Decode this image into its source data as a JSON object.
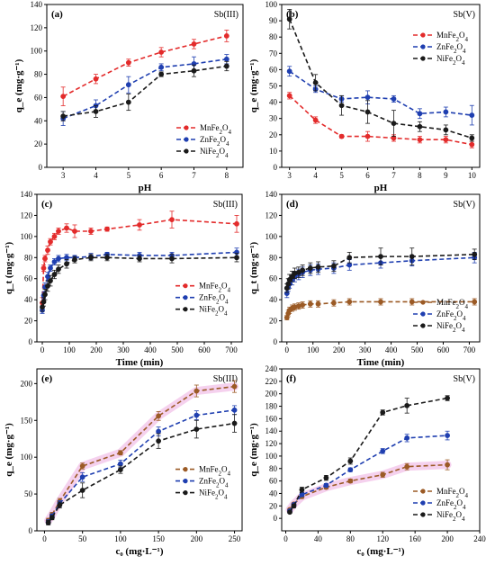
{
  "colors": {
    "MnFe2O4": "#e32b2b",
    "ZnFe2O4": "#1f3fb0",
    "NiFe2O4": "#1a1a1a",
    "brownMn": "#9b5a25",
    "highlight": "#f3c6ea"
  },
  "chart_data": [
    {
      "id": "a",
      "type": "line",
      "panel_label": "(a)",
      "tag": "Sb(III)",
      "xlabel": "pH",
      "ylabel": "q_e (mg·g⁻¹)",
      "xlim": [
        2.5,
        8.5
      ],
      "ylim": [
        0,
        140
      ],
      "xticks": [
        3,
        4,
        5,
        6,
        7,
        8
      ],
      "yticks": [
        0,
        20,
        40,
        60,
        80,
        100,
        120,
        140
      ],
      "legend_position": "bottom-right",
      "series": [
        {
          "name": "MnFe2O4",
          "x": [
            3,
            4,
            5,
            6,
            7,
            8
          ],
          "y": [
            61,
            76,
            90,
            99,
            106,
            113
          ],
          "err": [
            8,
            4,
            3,
            4,
            4,
            5
          ]
        },
        {
          "name": "ZnFe2O4",
          "x": [
            3,
            4,
            5,
            6,
            7,
            8
          ],
          "y": [
            42,
            53,
            71,
            86,
            89,
            93
          ],
          "err": [
            6,
            5,
            7,
            3,
            6,
            4
          ]
        },
        {
          "name": "NiFe2O4",
          "x": [
            3,
            4,
            5,
            6,
            7,
            8
          ],
          "y": [
            44,
            48,
            56,
            80,
            83,
            87
          ],
          "err": [
            4,
            5,
            7,
            2,
            5,
            4
          ]
        }
      ]
    },
    {
      "id": "b",
      "type": "line",
      "panel_label": "(b)",
      "tag": "Sb(V)",
      "xlabel": "pH",
      "ylabel": "q_e (mg·g⁻¹)",
      "xlim": [
        2.7,
        10.3
      ],
      "ylim": [
        0,
        100
      ],
      "xticks": [
        3,
        4,
        5,
        6,
        7,
        8,
        9,
        10
      ],
      "yticks": [
        0,
        10,
        20,
        30,
        40,
        50,
        60,
        70,
        80,
        90,
        100
      ],
      "legend_position": "top-right",
      "series": [
        {
          "name": "MnFe2O4",
          "x": [
            3,
            4,
            5,
            6,
            7,
            8,
            9,
            10
          ],
          "y": [
            44,
            29,
            19,
            19,
            18,
            17,
            17,
            14
          ],
          "err": [
            2,
            2,
            1,
            3,
            2,
            2,
            2,
            2
          ]
        },
        {
          "name": "ZnFe2O4",
          "x": [
            3,
            4,
            5,
            6,
            7,
            8,
            9,
            10
          ],
          "y": [
            59,
            48,
            42,
            43,
            42,
            33,
            34,
            32
          ],
          "err": [
            3,
            2,
            2,
            4,
            2,
            3,
            3,
            6
          ]
        },
        {
          "name": "NiFe2O4",
          "x": [
            3,
            4,
            5,
            6,
            7,
            8,
            9,
            10
          ],
          "y": [
            91,
            52,
            38,
            34,
            27,
            25,
            23,
            18
          ],
          "err": [
            6,
            5,
            6,
            7,
            8,
            3,
            3,
            2
          ]
        }
      ]
    },
    {
      "id": "c",
      "type": "line",
      "panel_label": "(c)",
      "tag": "Sb(III)",
      "xlabel": "Time (min)",
      "ylabel": "q_t (mg·g⁻¹)",
      "xlim": [
        -20,
        740
      ],
      "ylim": [
        0,
        140
      ],
      "xticks": [
        0,
        100,
        200,
        300,
        400,
        500,
        600,
        700
      ],
      "yticks": [
        0,
        20,
        40,
        60,
        80,
        100,
        120,
        140
      ],
      "legend_position": "right",
      "series": [
        {
          "name": "MnFe2O4",
          "x": [
            0,
            5,
            10,
            20,
            30,
            45,
            60,
            90,
            120,
            180,
            240,
            360,
            480,
            720
          ],
          "y": [
            37,
            70,
            79,
            87,
            95,
            100,
            105,
            108,
            105,
            105,
            107,
            111,
            116,
            112
          ],
          "err": [
            5,
            3,
            3,
            4,
            3,
            3,
            3,
            4,
            6,
            3,
            2,
            5,
            8,
            8
          ]
        },
        {
          "name": "ZnFe2O4",
          "x": [
            0,
            5,
            10,
            20,
            30,
            45,
            60,
            90,
            120,
            180,
            240,
            360,
            480,
            720
          ],
          "y": [
            30,
            44,
            52,
            62,
            70,
            76,
            79,
            80,
            80,
            81,
            83,
            82,
            82,
            85
          ],
          "err": [
            3,
            3,
            4,
            4,
            3,
            3,
            3,
            3,
            2,
            3,
            2,
            3,
            3,
            4
          ]
        },
        {
          "name": "NiFe2O4",
          "x": [
            0,
            5,
            10,
            20,
            30,
            45,
            60,
            90,
            120,
            180,
            240,
            360,
            480,
            720
          ],
          "y": [
            33,
            38,
            45,
            53,
            58,
            64,
            69,
            74,
            78,
            80,
            80,
            79,
            79,
            80
          ],
          "err": [
            4,
            4,
            5,
            5,
            5,
            4,
            4,
            4,
            3,
            3,
            3,
            3,
            4,
            4
          ]
        }
      ]
    },
    {
      "id": "d",
      "type": "line",
      "panel_label": "(d)",
      "tag": "Sb(V)",
      "xlabel": "Time (min)",
      "ylabel": "q_t (mg·g⁻¹)",
      "xlim": [
        -20,
        740
      ],
      "ylim": [
        0,
        140
      ],
      "xticks": [
        0,
        100,
        200,
        300,
        400,
        500,
        600,
        700
      ],
      "yticks": [
        0,
        20,
        40,
        60,
        80,
        100,
        120,
        140
      ],
      "legend_position": "bottom-right",
      "series": [
        {
          "name": "MnFe2O4",
          "x": [
            0,
            5,
            10,
            20,
            30,
            45,
            60,
            90,
            120,
            180,
            240,
            360,
            480,
            720
          ],
          "y": [
            23,
            27,
            30,
            32,
            33,
            34,
            35,
            36,
            36,
            37,
            38,
            38,
            38,
            38
          ],
          "err": [
            2,
            3,
            3,
            3,
            3,
            3,
            3,
            3,
            3,
            3,
            3,
            3,
            3,
            3
          ]
        },
        {
          "name": "ZnFe2O4",
          "x": [
            0,
            5,
            10,
            20,
            30,
            45,
            60,
            90,
            120,
            180,
            240,
            360,
            480,
            720
          ],
          "y": [
            46,
            52,
            55,
            59,
            62,
            64,
            66,
            68,
            69,
            70,
            73,
            75,
            77,
            80
          ],
          "err": [
            4,
            4,
            4,
            5,
            5,
            5,
            5,
            5,
            5,
            5,
            5,
            5,
            5,
            5
          ]
        },
        {
          "name": "NiFe2O4",
          "x": [
            0,
            5,
            10,
            20,
            30,
            45,
            60,
            90,
            120,
            180,
            240,
            360,
            480,
            720
          ],
          "y": [
            51,
            55,
            59,
            62,
            65,
            66,
            68,
            70,
            71,
            72,
            80,
            81,
            81,
            83
          ],
          "err": [
            4,
            5,
            5,
            5,
            5,
            5,
            5,
            5,
            5,
            5,
            5,
            8,
            8,
            5
          ]
        }
      ]
    },
    {
      "id": "e",
      "type": "line",
      "panel_label": "(e)",
      "tag": "Sb(III)",
      "xlabel": "c₀ (mg·L⁻¹)",
      "ylabel": "q_e (mg·g⁻¹)",
      "xlim": [
        -10,
        260
      ],
      "ylim": [
        0,
        220
      ],
      "xticks": [
        0,
        50,
        100,
        150,
        200,
        250
      ],
      "yticks": [
        0,
        50,
        100,
        150,
        200
      ],
      "legend_position": "right",
      "series": [
        {
          "name": "MnFe2O4",
          "x": [
            5,
            10,
            20,
            50,
            100,
            150,
            200,
            250
          ],
          "y": [
            14,
            22,
            40,
            88,
            106,
            156,
            190,
            196
          ],
          "err": [
            3,
            3,
            4,
            4,
            3,
            6,
            8,
            8
          ]
        },
        {
          "name": "ZnFe2O4",
          "x": [
            5,
            10,
            20,
            50,
            100,
            150,
            200,
            250
          ],
          "y": [
            12,
            20,
            37,
            73,
            91,
            135,
            157,
            164
          ],
          "err": [
            3,
            3,
            4,
            6,
            5,
            6,
            6,
            6
          ]
        },
        {
          "name": "NiFe2O4",
          "x": [
            5,
            10,
            20,
            50,
            100,
            150,
            200,
            250
          ],
          "y": [
            11,
            18,
            35,
            55,
            83,
            122,
            138,
            146
          ],
          "err": [
            3,
            3,
            4,
            10,
            5,
            10,
            12,
            12
          ]
        }
      ]
    },
    {
      "id": "f",
      "type": "line",
      "panel_label": "(f)",
      "tag": "Sb(V)",
      "xlabel": "c₀ (mg·L⁻¹)",
      "ylabel": "q_e (mg·g⁻¹)",
      "xlim": [
        -5,
        240
      ],
      "ylim": [
        -20,
        240
      ],
      "xticks": [
        0,
        40,
        80,
        120,
        160,
        200,
        240
      ],
      "yticks": [
        0,
        20,
        40,
        60,
        80,
        100,
        120,
        140,
        160,
        180,
        200,
        220,
        240
      ],
      "legend_position": "bottom-right",
      "series": [
        {
          "name": "MnFe2O4",
          "x": [
            5,
            10,
            20,
            50,
            80,
            120,
            150,
            200
          ],
          "y": [
            14,
            23,
            35,
            50,
            60,
            70,
            83,
            86
          ],
          "err": [
            2,
            2,
            3,
            3,
            3,
            4,
            5,
            8
          ]
        },
        {
          "name": "ZnFe2O4",
          "x": [
            5,
            10,
            20,
            50,
            80,
            120,
            150,
            200
          ],
          "y": [
            12,
            22,
            38,
            53,
            78,
            108,
            129,
            133
          ],
          "err": [
            2,
            2,
            3,
            3,
            3,
            4,
            6,
            7
          ]
        },
        {
          "name": "NiFe2O4",
          "x": [
            5,
            10,
            20,
            50,
            80,
            120,
            150,
            200
          ],
          "y": [
            10,
            20,
            46,
            65,
            92,
            170,
            181,
            193
          ],
          "err": [
            2,
            3,
            4,
            4,
            5,
            4,
            12,
            4
          ]
        }
      ]
    }
  ]
}
